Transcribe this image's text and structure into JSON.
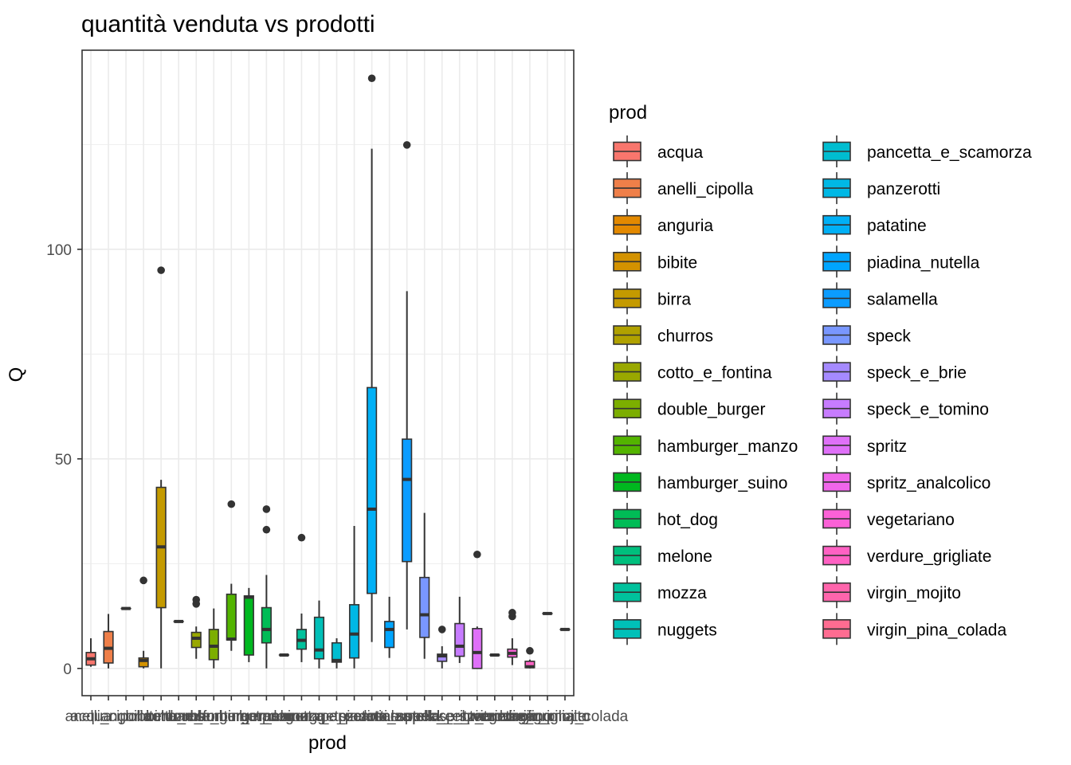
{
  "chart_data": {
    "type": "boxplot",
    "title": "quantità venduta vs prodotti",
    "xlabel": "prod",
    "ylabel": "Q",
    "ylim": [
      -6.5,
      147.5
    ],
    "yticks": [
      0,
      50,
      100
    ],
    "grid": true,
    "legend": {
      "title": "prod",
      "placement": "right",
      "columns": 2
    },
    "categories": [
      {
        "name": "acqua",
        "color": "#F8766D",
        "lower": 0.4,
        "q1": 0.8,
        "median": 2.3,
        "q3": 3.8,
        "upper": 7.2,
        "outliers": []
      },
      {
        "name": "anelli_cipolla",
        "color": "#EF7F49",
        "lower": 0,
        "q1": 1.3,
        "median": 4.8,
        "q3": 8.8,
        "upper": 13,
        "outliers": []
      },
      {
        "name": "anguria",
        "color": "#E38900",
        "lower": 14.3,
        "q1": 14.3,
        "median": 14.3,
        "q3": 14.3,
        "upper": 14.3,
        "outliers": []
      },
      {
        "name": "bibite",
        "color": "#D39200",
        "lower": 0,
        "q1": 0.4,
        "median": 1.9,
        "q3": 2.5,
        "upper": 4.2,
        "outliers": [
          21
        ]
      },
      {
        "name": "birra",
        "color": "#C49A00",
        "lower": 0,
        "q1": 14.5,
        "median": 29,
        "q3": 43.2,
        "upper": 45,
        "outliers": [
          95
        ]
      },
      {
        "name": "churros",
        "color": "#B0A100",
        "lower": 11.2,
        "q1": 11.2,
        "median": 11.2,
        "q3": 11.2,
        "upper": 11.2,
        "outliers": []
      },
      {
        "name": "cotto_e_fontina",
        "color": "#99A800",
        "lower": 2.3,
        "q1": 5,
        "median": 7.2,
        "q3": 8.6,
        "upper": 10,
        "outliers": [
          15.4,
          16.4
        ]
      },
      {
        "name": "double_burger",
        "color": "#7CAE00",
        "lower": 0,
        "q1": 2.1,
        "median": 5.3,
        "q3": 9.3,
        "upper": 14.3,
        "outliers": []
      },
      {
        "name": "hamburger_manzo",
        "color": "#53B400",
        "lower": 4.2,
        "q1": 6.8,
        "median": 7,
        "q3": 17.7,
        "upper": 20.2,
        "outliers": [
          39.2
        ]
      },
      {
        "name": "hamburger_suino",
        "color": "#00B81F",
        "lower": 1.5,
        "q1": 3.2,
        "median": 17,
        "q3": 17.3,
        "upper": 19.2,
        "outliers": []
      },
      {
        "name": "hot_dog",
        "color": "#00BC56",
        "lower": 0,
        "q1": 6.1,
        "median": 9.3,
        "q3": 14.5,
        "upper": 22.3,
        "outliers": [
          33.1,
          38
        ]
      },
      {
        "name": "melone",
        "color": "#00BF7D",
        "lower": 3.2,
        "q1": 3.2,
        "median": 3.2,
        "q3": 3.2,
        "upper": 3.2,
        "outliers": []
      },
      {
        "name": "mozza",
        "color": "#00C19C",
        "lower": 1.5,
        "q1": 4.6,
        "median": 6.7,
        "q3": 9.3,
        "upper": 13.1,
        "outliers": [
          31.2
        ]
      },
      {
        "name": "nuggets",
        "color": "#00C0B8",
        "lower": 0,
        "q1": 2.3,
        "median": 4.4,
        "q3": 12.2,
        "upper": 16.2,
        "outliers": []
      },
      {
        "name": "pancetta_e_scamorza",
        "color": "#00BDD0",
        "lower": 0,
        "q1": 1.5,
        "median": 1.9,
        "q3": 6.1,
        "upper": 7.2,
        "outliers": []
      },
      {
        "name": "panzerotti",
        "color": "#00B8E5",
        "lower": 0,
        "q1": 2.5,
        "median": 8.2,
        "q3": 15.2,
        "upper": 34,
        "outliers": []
      },
      {
        "name": "patatine",
        "color": "#00B0F6",
        "lower": 6.3,
        "q1": 17.9,
        "median": 38,
        "q3": 67,
        "upper": 124,
        "outliers": [
          140.8
        ]
      },
      {
        "name": "piadina_nutella",
        "color": "#00A5FF",
        "lower": 2.5,
        "q1": 5,
        "median": 9.3,
        "q3": 11.2,
        "upper": 17.1,
        "outliers": []
      },
      {
        "name": "salamella",
        "color": "#0B9CFF",
        "lower": 9.3,
        "q1": 25.5,
        "median": 45.1,
        "q3": 54.7,
        "upper": 90,
        "outliers": [
          124.9
        ]
      },
      {
        "name": "speck",
        "color": "#7997FF",
        "lower": 2.3,
        "q1": 7.4,
        "median": 12.8,
        "q3": 21.7,
        "upper": 37.1,
        "outliers": []
      },
      {
        "name": "speck_e_brie",
        "color": "#A58AFF",
        "lower": 0,
        "q1": 1.7,
        "median": 3,
        "q3": 3.4,
        "upper": 5.3,
        "outliers": [
          9.3
        ]
      },
      {
        "name": "speck_e_tomino",
        "color": "#C77CFF",
        "lower": 1.3,
        "q1": 2.9,
        "median": 5.3,
        "q3": 10.7,
        "upper": 17.1,
        "outliers": []
      },
      {
        "name": "spritz",
        "color": "#DF70F8",
        "lower": 0,
        "q1": 0,
        "median": 3.8,
        "q3": 9.5,
        "upper": 10,
        "outliers": [
          27.2
        ]
      },
      {
        "name": "spritz_analcolico",
        "color": "#F066EA",
        "lower": 3.2,
        "q1": 3.2,
        "median": 3.2,
        "q3": 3.2,
        "upper": 3.2,
        "outliers": []
      },
      {
        "name": "vegetariano",
        "color": "#FB61D7",
        "lower": 0.8,
        "q1": 2.7,
        "median": 3.6,
        "q3": 4.6,
        "upper": 7.2,
        "outliers": [
          12.4,
          13.3
        ]
      },
      {
        "name": "verdure_grigliate",
        "color": "#FF61C3",
        "lower": 0,
        "q1": 0.2,
        "median": 0.4,
        "q3": 1.7,
        "upper": 2.1,
        "outliers": [
          4.2
        ]
      },
      {
        "name": "virgin_mojito",
        "color": "#FF65AC",
        "lower": 13.1,
        "q1": 13.1,
        "median": 13.1,
        "q3": 13.1,
        "upper": 13.1,
        "outliers": []
      },
      {
        "name": "virgin_pina_colada",
        "color": "#FF6C91",
        "lower": 9.3,
        "q1": 9.3,
        "median": 9.3,
        "q3": 9.3,
        "upper": 9.3,
        "outliers": []
      }
    ]
  }
}
